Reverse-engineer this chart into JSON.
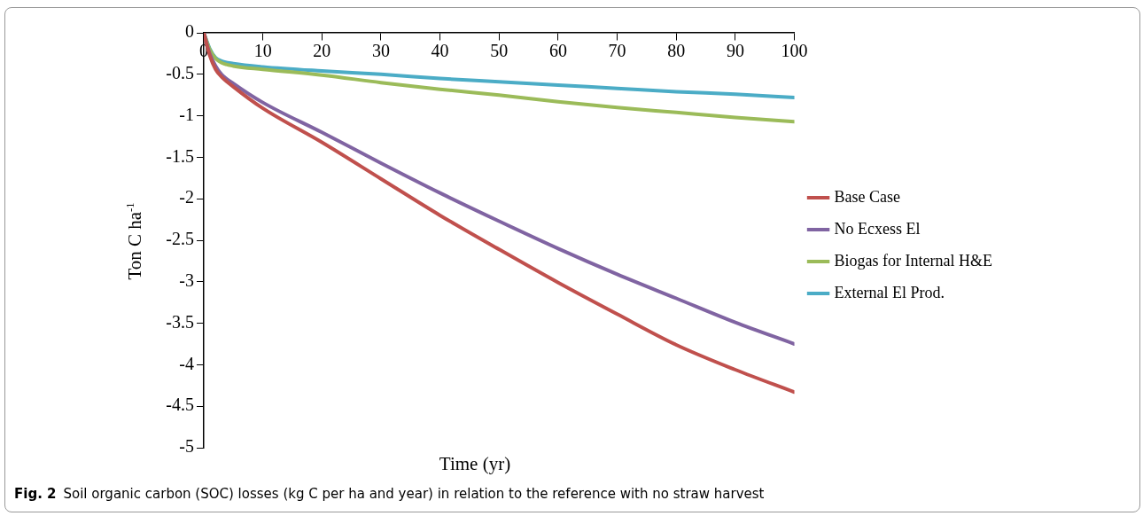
{
  "chart_data": {
    "type": "line",
    "xlabel": "Time (yr)",
    "ylabel": "Ton C ha$^{-1}$",
    "x": [
      0,
      1,
      2,
      3,
      5,
      10,
      20,
      30,
      40,
      50,
      60,
      70,
      80,
      90,
      100
    ],
    "series": [
      {
        "name": "Base Case",
        "color": "#c0504d",
        "values": [
          0,
          -0.27,
          -0.44,
          -0.53,
          -0.65,
          -0.91,
          -1.32,
          -1.76,
          -2.2,
          -2.61,
          -3.01,
          -3.39,
          -3.76,
          -4.06,
          -4.33
        ]
      },
      {
        "name": "No Ecxess El",
        "color": "#8064a2",
        "values": [
          0,
          -0.25,
          -0.4,
          -0.5,
          -0.61,
          -0.84,
          -1.2,
          -1.57,
          -1.93,
          -2.27,
          -2.6,
          -2.91,
          -3.2,
          -3.49,
          -3.75
        ]
      },
      {
        "name": "Biogas for Internal H&E",
        "color": "#9bbb59",
        "values": [
          0,
          -0.2,
          -0.31,
          -0.36,
          -0.4,
          -0.44,
          -0.51,
          -0.6,
          -0.68,
          -0.75,
          -0.83,
          -0.9,
          -0.96,
          -1.02,
          -1.07
        ]
      },
      {
        "name": "External El Prod.",
        "color": "#4bacc6",
        "values": [
          0,
          -0.19,
          -0.3,
          -0.34,
          -0.37,
          -0.41,
          -0.46,
          -0.5,
          -0.55,
          -0.59,
          -0.63,
          -0.67,
          -0.71,
          -0.74,
          -0.78
        ]
      }
    ],
    "xlim": [
      0,
      100
    ],
    "xticks": [
      0,
      10,
      20,
      30,
      40,
      50,
      60,
      70,
      80,
      90,
      100
    ],
    "ylim": [
      -5,
      0
    ],
    "yticks": [
      -5,
      -4.5,
      -4,
      -3.5,
      -3,
      -2.5,
      -2,
      -1.5,
      -1,
      -0.5,
      0
    ],
    "grid": false,
    "legend": "right",
    "marker": "none",
    "line_style": "solid",
    "annotations": [
      "Fig. 2",
      "Soil organic carbon (SOC) losses (kg C per ha and year) in relation to the reference with no straw harvest"
    ]
  }
}
